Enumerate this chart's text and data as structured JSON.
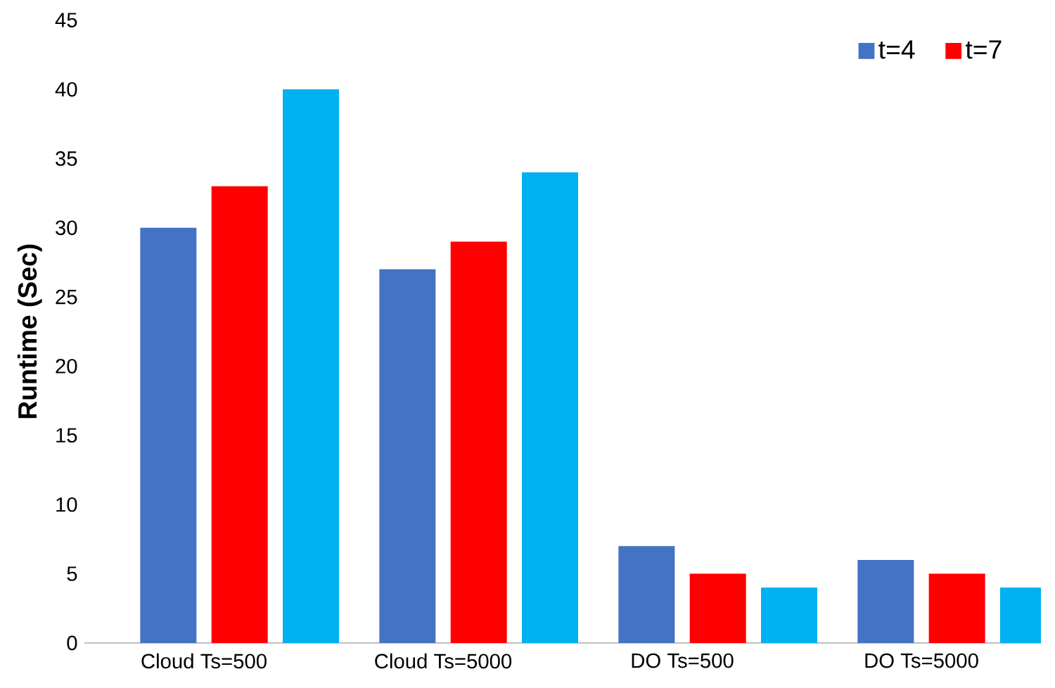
{
  "chart_data": {
    "type": "bar",
    "ylabel": "Runtime (Sec)",
    "categories": [
      "Cloud Ts=500",
      "Cloud Ts=5000",
      "DO Ts=500",
      "DO Ts=5000"
    ],
    "series": [
      {
        "name": "t=4",
        "color": "#4472c4",
        "values": [
          30,
          27,
          7,
          6
        ]
      },
      {
        "name": "t=7",
        "color": "#ff0000",
        "values": [
          33,
          29,
          5,
          5
        ]
      },
      {
        "color": "#00b0f0",
        "values": [
          40,
          34,
          4,
          4
        ]
      }
    ],
    "ylim": [
      0,
      45
    ],
    "yticks": [
      0,
      5,
      10,
      15,
      20,
      25,
      30,
      35,
      40,
      45
    ],
    "legend": "top right",
    "grid": false
  }
}
